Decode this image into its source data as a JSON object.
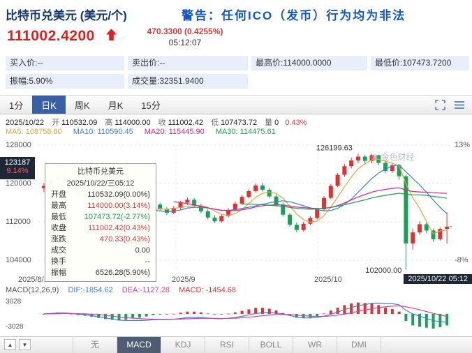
{
  "header": {
    "title": "比特币兑美元 (美元/个)",
    "warning": "警告：任何ICO（发币）行为均为非法"
  },
  "quote": {
    "price": "111002.4200",
    "change": "470.3300 (0.4255%)",
    "time": "05:12:07",
    "fields": [
      {
        "label": "买入价:",
        "value": "--"
      },
      {
        "label": "卖出价:",
        "value": "--"
      },
      {
        "label": "最高价:",
        "value": "114000.0000"
      },
      {
        "label": "最低价:",
        "value": "107473.7200"
      },
      {
        "label": "振幅:",
        "value": "5.90%"
      },
      {
        "label": "成交量:",
        "value": "32351.9400"
      }
    ]
  },
  "period_tabs": [
    {
      "label": "1分",
      "active": false
    },
    {
      "label": "日K",
      "active": true
    },
    {
      "label": "周K",
      "active": false
    },
    {
      "label": "月K",
      "active": false
    },
    {
      "label": "15分",
      "active": false
    }
  ],
  "ohlc_readout": {
    "date": "2025/10/22",
    "o_label": "开",
    "o": "110532.09",
    "h_label": "高",
    "h": "114000.00",
    "c_label": "收",
    "c": "111002.42",
    "l_label": "低",
    "l": "107473.72",
    "v_label": "量",
    "v": "0",
    "pct": "0.43%"
  },
  "ma": [
    {
      "label": "MA5:",
      "value": "108758.80",
      "color": "#e8a33d"
    },
    {
      "label": "MA10:",
      "value": "110590.45",
      "color": "#3b7fd4"
    },
    {
      "label": "MA20:",
      "value": "115445.90",
      "color": "#e0218a"
    },
    {
      "label": "MA30:",
      "value": "114475.61",
      "color": "#1a9e50"
    }
  ],
  "price_axis": {
    "left_labels": [
      "128000",
      "120000",
      "112000",
      "104000"
    ],
    "right_top": "13%",
    "right_bottom": "-8%"
  },
  "x_axis": [
    "2025/8/13",
    "2025/9",
    "2025/10"
  ],
  "cursor_badge": {
    "price": "123187",
    "pct": "9.14%"
  },
  "annotations": {
    "high": "126199.63",
    "low": "102000.00"
  },
  "datetime_badge": "2025/10/22 05:12",
  "watermark": "金色财经",
  "tooltip": {
    "title": "比特币兑美元",
    "date": "2025/10/22/三05:12",
    "rows": [
      {
        "label": "开盘",
        "value": "110532.09(0.00%)",
        "color": "#333333"
      },
      {
        "label": "最高",
        "value": "114000.00(3.14%)",
        "color": "#d23a3a"
      },
      {
        "label": "最低",
        "value": "107473.72(-2.77%)",
        "color": "#1a9e50"
      },
      {
        "label": "收盘",
        "value": "111002.42(0.43%)",
        "color": "#d23a3a"
      },
      {
        "label": "涨跌",
        "value": "470.33(0.43%)",
        "color": "#d23a3a"
      },
      {
        "label": "成交",
        "value": "0.00",
        "color": "#333333"
      },
      {
        "label": "换手",
        "value": "--",
        "color": "#333333"
      },
      {
        "label": "振幅",
        "value": "6526.28(5.90%)",
        "color": "#333333"
      }
    ]
  },
  "macd_readout": {
    "title": "MACD(12,26,9)",
    "dif": "DIF:-1854.62",
    "dea": "DEA:-1127.28",
    "macd": "MACD: -1454.68",
    "y_top": "3028",
    "y_bottom": "-3028"
  },
  "indicator_tabs": [
    {
      "label": "无",
      "active": false
    },
    {
      "label": "MACD",
      "active": true
    },
    {
      "label": "KDJ",
      "active": false
    },
    {
      "label": "RSI",
      "active": false
    },
    {
      "label": "BOLL",
      "active": false
    },
    {
      "label": "WR",
      "active": false
    },
    {
      "label": "DMI",
      "active": false
    }
  ],
  "bottom_bar": {
    "up": "▲",
    "down": "▼"
  },
  "chart_data": {
    "type": "candlestick",
    "symbol": "比特币兑美元",
    "period": "日K",
    "y_ticks": [
      128000,
      120000,
      112000,
      104000
    ],
    "x_ticks": [
      "2025/8/13",
      "2025/9",
      "2025/10"
    ],
    "up_color": "#dd3333",
    "down_color": "#1aa05a",
    "ma_periods": [
      5,
      10,
      20,
      30
    ],
    "candles": [
      [
        119000,
        120000,
        118200,
        119500
      ],
      [
        119500,
        121200,
        119100,
        120800
      ],
      [
        120800,
        122000,
        120300,
        121500
      ],
      [
        121500,
        121900,
        119800,
        120200
      ],
      [
        120200,
        120600,
        118300,
        118800
      ],
      [
        118800,
        119200,
        117000,
        117500
      ],
      [
        117500,
        118500,
        117000,
        117900
      ],
      [
        117900,
        118200,
        115900,
        116300
      ],
      [
        116300,
        116800,
        114800,
        115200
      ],
      [
        115200,
        115600,
        113700,
        114100
      ],
      [
        114100,
        114700,
        113000,
        113400
      ],
      [
        113400,
        113900,
        112100,
        112600
      ],
      [
        112600,
        114200,
        112300,
        113800
      ],
      [
        113800,
        115100,
        113400,
        114600
      ],
      [
        114600,
        115000,
        113400,
        113900
      ],
      [
        113900,
        115200,
        113500,
        114800
      ],
      [
        114800,
        116100,
        114400,
        115600
      ],
      [
        115600,
        116000,
        114300,
        114700
      ],
      [
        114700,
        115100,
        113400,
        113900
      ],
      [
        113900,
        115300,
        113600,
        114900
      ],
      [
        114900,
        116400,
        114600,
        116000
      ],
      [
        116000,
        117100,
        115500,
        116600
      ],
      [
        116600,
        117000,
        115000,
        115400
      ],
      [
        115400,
        115800,
        113800,
        114200
      ],
      [
        114200,
        114600,
        112500,
        112900
      ],
      [
        112900,
        113400,
        111700,
        112100
      ],
      [
        112100,
        113600,
        111800,
        113200
      ],
      [
        113200,
        114900,
        112900,
        114500
      ],
      [
        114500,
        116200,
        114200,
        115800
      ],
      [
        115800,
        117600,
        115500,
        117200
      ],
      [
        117200,
        118800,
        116900,
        118400
      ],
      [
        118400,
        120000,
        118100,
        119600
      ],
      [
        119600,
        120100,
        118300,
        118700
      ],
      [
        118700,
        119100,
        116900,
        117300
      ],
      [
        117300,
        117700,
        115200,
        115600
      ],
      [
        115600,
        116000,
        113100,
        113500
      ],
      [
        113500,
        113900,
        111000,
        111400
      ],
      [
        111400,
        111900,
        109800,
        110300
      ],
      [
        110300,
        112000,
        110000,
        111600
      ],
      [
        111600,
        113200,
        111300,
        112800
      ],
      [
        112800,
        114900,
        112500,
        114600
      ],
      [
        114600,
        117400,
        114300,
        117000
      ],
      [
        117000,
        119900,
        116700,
        119500
      ],
      [
        119500,
        122200,
        119200,
        121800
      ],
      [
        121800,
        124100,
        121400,
        123600
      ],
      [
        123600,
        125400,
        123100,
        124800
      ],
      [
        124800,
        126199.63,
        124200,
        125600
      ],
      [
        125600,
        126000,
        123900,
        124700
      ],
      [
        124700,
        126100,
        124200,
        125900
      ],
      [
        125900,
        126000,
        123800,
        124300
      ],
      [
        124300,
        124800,
        122100,
        122600
      ],
      [
        122600,
        124300,
        122200,
        123800
      ],
      [
        123800,
        124100,
        120800,
        121500
      ],
      [
        121500,
        121800,
        102000,
        107500
      ],
      [
        107500,
        110600,
        106200,
        109800
      ],
      [
        109800,
        112100,
        109300,
        111500
      ],
      [
        111500,
        111900,
        109600,
        110200
      ],
      [
        110200,
        110600,
        107800,
        108400
      ],
      [
        108400,
        110900,
        108100,
        110532
      ],
      [
        110532.09,
        114000,
        107473.72,
        111002.42
      ]
    ],
    "macd": {
      "params": [
        12,
        26,
        9
      ],
      "y_ticks": [
        3028,
        -3028
      ],
      "dif_color": "#3b7fd4",
      "dea_color": "#d6419e"
    }
  }
}
